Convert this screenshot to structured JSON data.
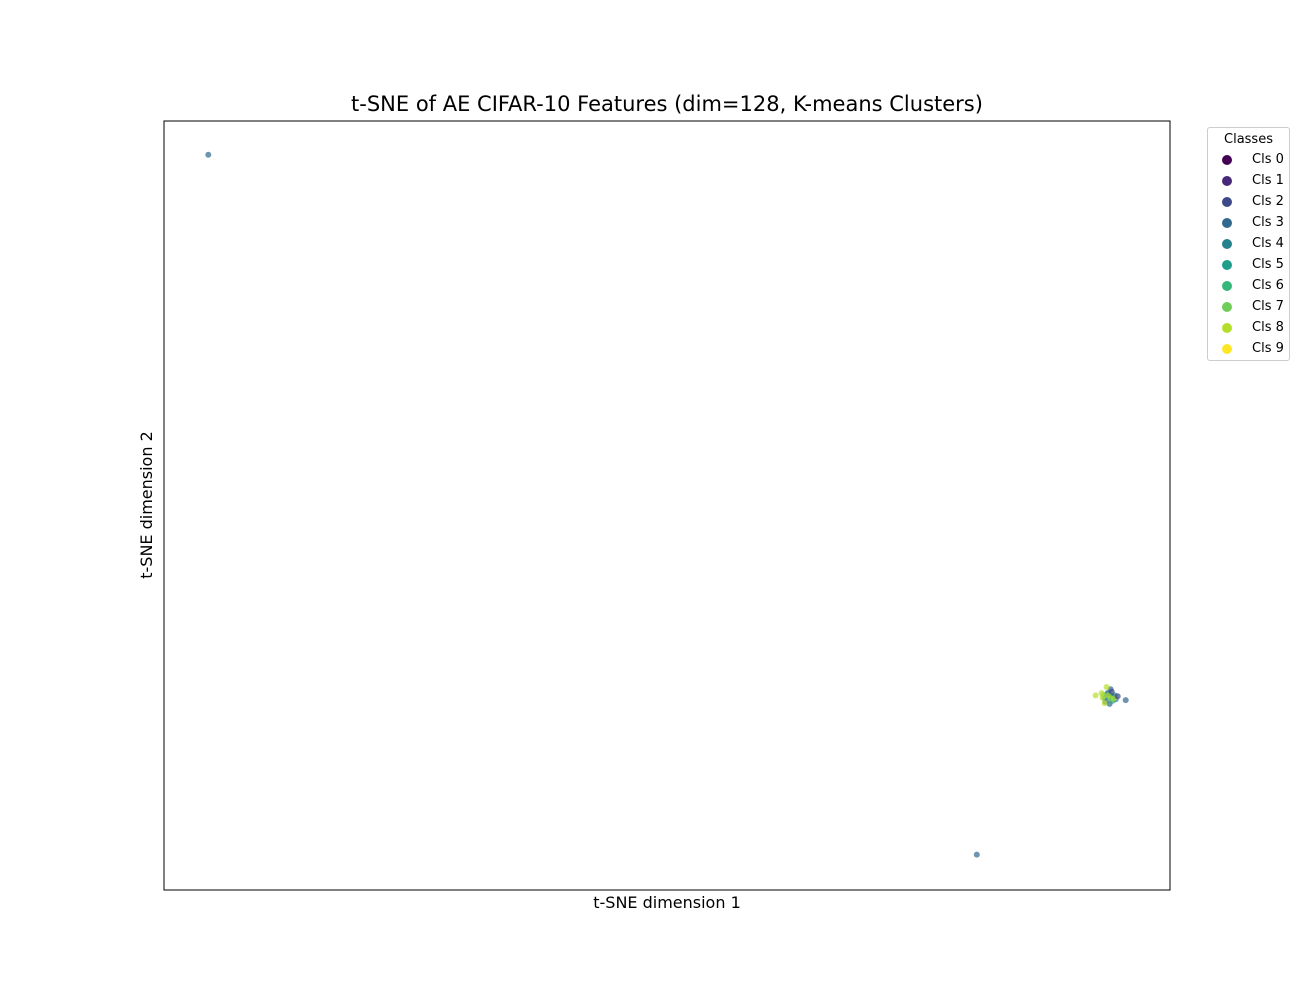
{
  "chart_data": {
    "type": "scatter",
    "title": "t-SNE of AE CIFAR-10 Features (dim=128, K-means Clusters)",
    "xlabel": "t-SNE dimension 1",
    "ylabel": "t-SNE dimension 2",
    "xlim": [
      0,
      100
    ],
    "ylim": [
      0,
      100
    ],
    "grid": false,
    "ticks_shown": false,
    "legend": {
      "title": "Classes",
      "placement": "outside-top-right",
      "entries": [
        "Cls 0",
        "Cls 1",
        "Cls 2",
        "Cls 3",
        "Cls 4",
        "Cls 5",
        "Cls 6",
        "Cls 7",
        "Cls 8",
        "Cls 9"
      ]
    },
    "colors": [
      "#440154",
      "#482878",
      "#3e4989",
      "#31688e",
      "#26828e",
      "#1f9e89",
      "#35b779",
      "#6ece58",
      "#b5de2b",
      "#fde725"
    ],
    "marker_opacity": 0.7,
    "series": [
      {
        "name": "Cls 3",
        "points": [
          [
            4.4,
            95.6
          ],
          [
            80.8,
            4.6
          ],
          [
            93.8,
            25.6
          ],
          [
            94.0,
            24.2
          ],
          [
            94.3,
            25.1
          ],
          [
            95.6,
            24.7
          ],
          [
            93.6,
            24.5
          ],
          [
            94.1,
            26.1
          ]
        ]
      },
      {
        "name": "Cls 4",
        "points": [
          [
            94.2,
            25.2
          ],
          [
            94.5,
            25.3
          ],
          [
            93.9,
            25.5
          ],
          [
            94.6,
            24.8
          ],
          [
            93.5,
            25.0
          ]
        ]
      },
      {
        "name": "Cls 5",
        "points": [
          [
            94.0,
            25.0
          ],
          [
            94.3,
            24.6
          ]
        ]
      },
      {
        "name": "Cls 7",
        "points": [
          [
            93.4,
            25.4
          ],
          [
            94.1,
            24.9
          ]
        ]
      },
      {
        "name": "Cls 8",
        "points": [
          [
            92.6,
            25.3
          ],
          [
            93.2,
            25.6
          ],
          [
            93.7,
            26.4
          ],
          [
            93.5,
            24.3
          ],
          [
            93.9,
            25.3
          ],
          [
            94.4,
            24.9
          ],
          [
            93.3,
            25.0
          ]
        ]
      },
      {
        "name": "Cls 2",
        "points": [
          [
            94.8,
            25.2
          ],
          [
            94.2,
            25.8
          ]
        ]
      }
    ]
  }
}
